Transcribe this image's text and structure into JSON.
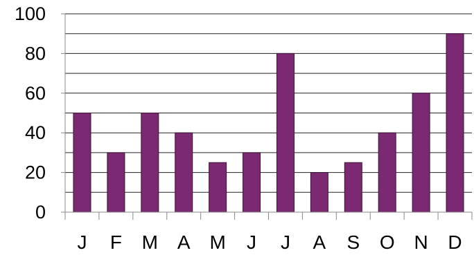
{
  "chart_data": {
    "type": "bar",
    "title": "",
    "xlabel": "",
    "ylabel": "",
    "categories": [
      "J",
      "F",
      "M",
      "A",
      "M",
      "J",
      "J",
      "A",
      "S",
      "O",
      "N",
      "D"
    ],
    "series": [
      {
        "values": [
          50,
          30,
          50,
          40,
          25,
          30,
          80,
          20,
          25,
          40,
          60,
          90
        ]
      }
    ],
    "ylim": [
      0,
      100
    ],
    "yticks": [
      0,
      20,
      40,
      60,
      80,
      100
    ],
    "ytick_labels": [
      "0",
      "20",
      "40",
      "60",
      "80",
      "100"
    ],
    "grid": "horizontal, every 10",
    "legend": "none",
    "colors": {
      "bar_fill": "#7b2a72",
      "bar_edge": "#3d1238",
      "grid": "#222222",
      "axis": "#888888"
    }
  }
}
